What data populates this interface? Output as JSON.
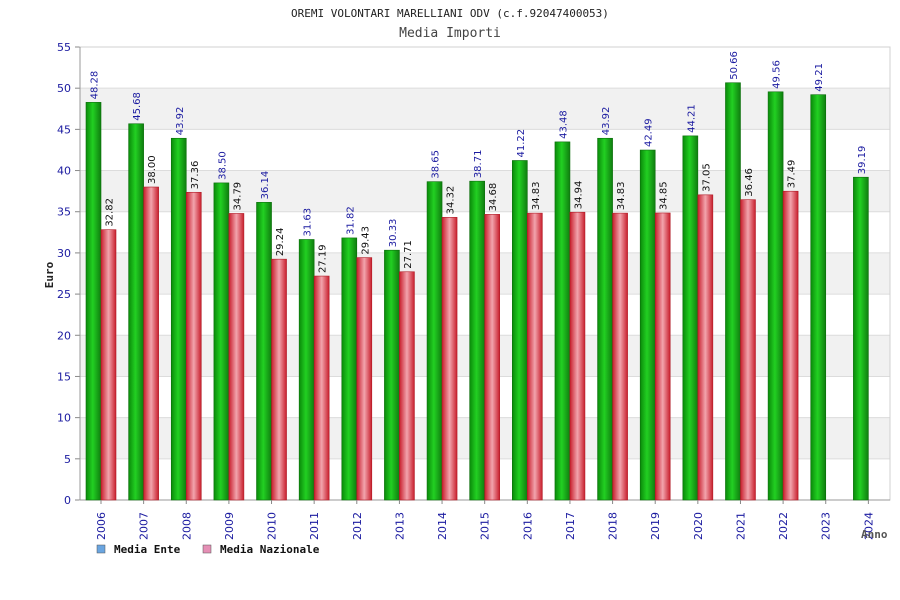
{
  "chart_data": {
    "type": "bar",
    "title": "OREMI VOLONTARI MARELLIANI ODV (c.f.92047400053)",
    "subtitle": "Media Importi",
    "xlabel": "Anno",
    "ylabel": "Euro",
    "ylim": [
      0,
      55
    ],
    "yticks": [
      0,
      5,
      10,
      15,
      20,
      25,
      30,
      35,
      40,
      45,
      50,
      55
    ],
    "grid": true,
    "legend_position": "bottom-left",
    "categories": [
      "2006",
      "2007",
      "2008",
      "2009",
      "2010",
      "2011",
      "2012",
      "2013",
      "2014",
      "2015",
      "2016",
      "2017",
      "2018",
      "2019",
      "2020",
      "2021",
      "2022",
      "2023",
      "2024"
    ],
    "series": [
      {
        "name": "Media Ente",
        "color": "#1fb21f",
        "legend_color": "#6aa5e0",
        "values": [
          48.28,
          45.68,
          43.92,
          38.5,
          36.14,
          31.63,
          31.82,
          30.33,
          38.65,
          38.71,
          41.22,
          43.48,
          43.92,
          42.49,
          44.21,
          50.66,
          49.56,
          49.21,
          39.19
        ],
        "labels": [
          "48.28",
          "45.68",
          "43.92",
          "38.50",
          "36.14",
          "31.63",
          "31.82",
          "30.33",
          "38.65",
          "38.71",
          "41.22",
          "43.48",
          "43.92",
          "42.49",
          "44.21",
          "50.66",
          "49.56",
          "49.21",
          "39.19"
        ]
      },
      {
        "name": "Media Nazionale",
        "color": "#e0424f",
        "legend_color": "#e58fb5",
        "values": [
          32.82,
          38.0,
          37.36,
          34.79,
          29.24,
          27.19,
          29.43,
          27.71,
          34.32,
          34.68,
          34.83,
          34.94,
          34.83,
          34.85,
          37.05,
          36.46,
          37.49,
          null,
          null
        ],
        "labels": [
          "32.82",
          "38.00",
          "37.36",
          "34.79",
          "29.24",
          "27.19",
          "29.43",
          "27.71",
          "34.32",
          "34.68",
          "34.83",
          "34.94",
          "34.83",
          "34.85",
          "37.05",
          "36.46",
          "37.49",
          null,
          null
        ]
      }
    ]
  }
}
